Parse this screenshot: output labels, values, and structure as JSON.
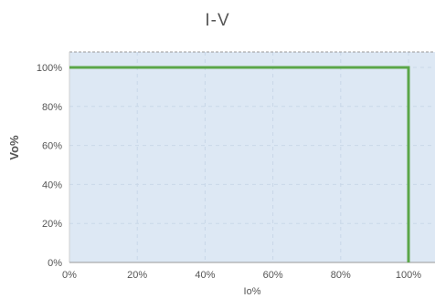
{
  "chart_data": {
    "type": "line",
    "title": "I-V",
    "xlabel": "Io%",
    "ylabel": "Vo%",
    "xlim": [
      0,
      100
    ],
    "ylim": [
      0,
      100
    ],
    "x_ticks": [
      "0%",
      "20%",
      "40%",
      "60%",
      "80%",
      "100%"
    ],
    "y_ticks": [
      "0%",
      "20%",
      "40%",
      "60%",
      "80%",
      "100%"
    ],
    "grid": true,
    "legend": "none",
    "series": [
      {
        "x": [
          0,
          100,
          100
        ],
        "y": [
          100,
          100,
          0
        ]
      }
    ],
    "colors": {
      "plot_background": "#dde8f4",
      "line": "#5aa648",
      "grid": "#c9d7e8",
      "frame": "#999999",
      "text": "#555555"
    }
  }
}
